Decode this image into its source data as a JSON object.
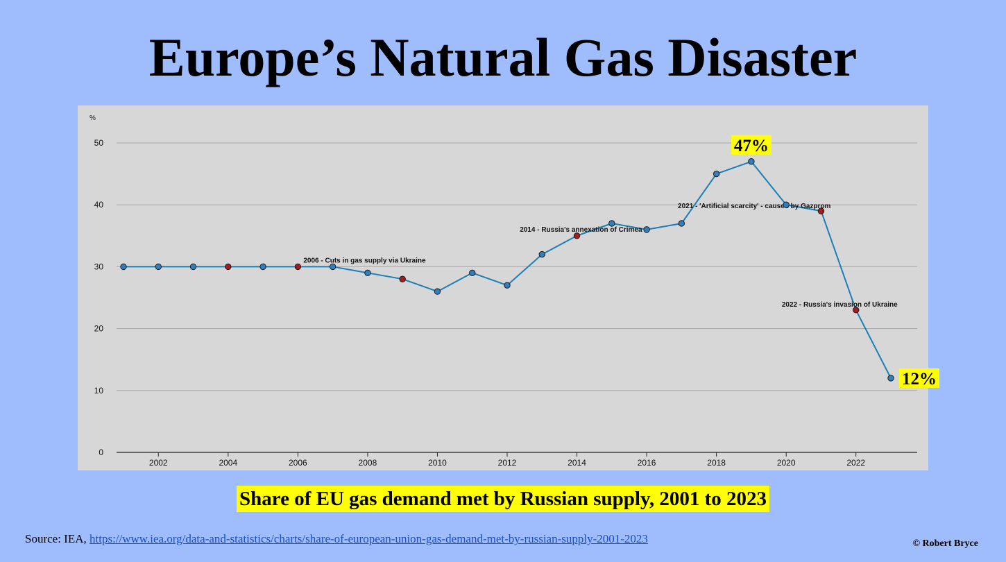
{
  "header": {
    "title": "Europe’s Natural Gas Disaster"
  },
  "caption": "Share of EU gas demand met by Russian supply, 2001 to 2023",
  "source": {
    "prefix": "Source: IEA, ",
    "link_text": "https://www.iea.org/data-and-statistics/charts/share-of-european-union-gas-demand-met-by-russian-supply-2001-2023"
  },
  "credit": "© Robert Bryce",
  "colors": {
    "background": "#9fbcfd",
    "plot_background": "#d7d7d7",
    "line": "#1a7fb5",
    "point": "#2f7fbf",
    "event_point": "#a21d1d",
    "highlight": "#ffff00"
  },
  "chart_data": {
    "type": "line",
    "title": "",
    "xlabel": "",
    "ylabel": "%",
    "xlim": [
      2001,
      2023
    ],
    "ylim": [
      0,
      50
    ],
    "grid": true,
    "yticks": [
      0,
      10,
      20,
      30,
      40,
      50
    ],
    "xticks": [
      2002,
      2004,
      2006,
      2008,
      2010,
      2012,
      2014,
      2016,
      2018,
      2020,
      2022
    ],
    "series": [
      {
        "x": [
          2001,
          2002,
          2003,
          2004,
          2005,
          2006,
          2007,
          2008,
          2009,
          2010,
          2011,
          2012,
          2013,
          2014,
          2015,
          2016,
          2017,
          2018,
          2019,
          2020,
          2021,
          2022,
          2023
        ],
        "values": [
          30,
          30,
          30,
          30,
          30,
          30,
          30,
          29,
          28,
          26,
          29,
          27,
          32,
          35,
          37,
          36,
          37,
          45,
          47,
          40,
          39,
          23,
          12
        ]
      }
    ],
    "event_years": [
      2004,
      2006,
      2009,
      2014,
      2021,
      2022
    ],
    "annotations": [
      {
        "x": 2006,
        "y": 30,
        "text": "2006 - Cuts in gas supply via Ukraine"
      },
      {
        "x": 2014,
        "y": 35,
        "text": "2014 - Russia's annexation of Crimea"
      },
      {
        "x": 2021,
        "y": 39,
        "text": "2021 - 'Artificial scarcity' - caused by Gazprom"
      },
      {
        "x": 2022,
        "y": 23,
        "text": "2022 - Russia's invasion of Ukraine"
      }
    ],
    "callouts": [
      {
        "x": 2019,
        "y": 47,
        "text": "47%"
      },
      {
        "x": 2023,
        "y": 12,
        "text": "12%"
      }
    ]
  }
}
